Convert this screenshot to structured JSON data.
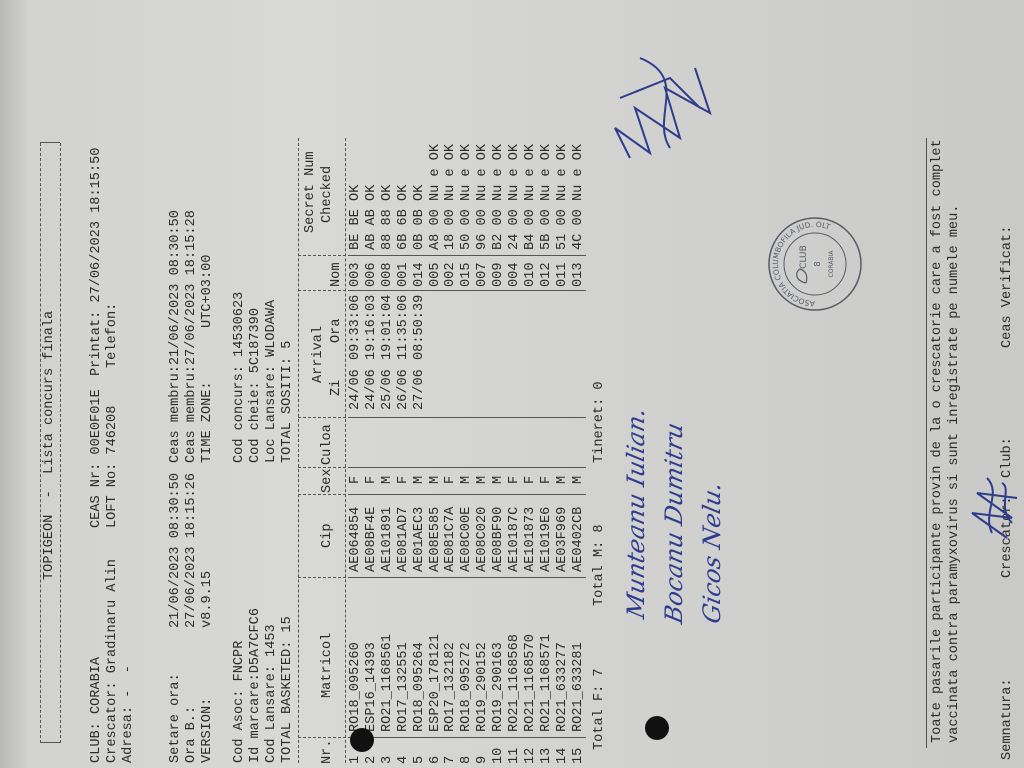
{
  "title": "TOPIGEON  -  Lista concurs finala",
  "header": {
    "club": "CLUB: CORABIA",
    "crescator": "Crescator: Gradinaru Alin",
    "adresa": "Adresa: -  -",
    "ceas_nr": "CEAS Nr: 00E0F01E",
    "loft_no": "LOFT No: 746208",
    "printat": "Printat: 27/06/2023 18:15:50",
    "telefon": "Telefon:",
    "setare_ora_label": "Setare ora:",
    "setare_ora": "21/06/2023 08:30:50",
    "ora_b_label": "Ora B.:",
    "ora_b": "27/06/2023 18:15:26",
    "version_label": "VERSION:",
    "version": "v8.9.15",
    "ceas_membru_1": "Ceas membru:21/06/2023 08:30:50",
    "ceas_membru_2": "Ceas membru:27/06/2023 18:15:28",
    "time_zone_label": "TIME ZONE:",
    "time_zone": "UTC+03:00",
    "cod_asoc": "Cod Asoc: FNCPR",
    "id_marcare": "Id marcare:D5A7CFC6",
    "cod_lansare": "Cod Lansare: 1453",
    "total_basketed": "TOTAL BASKETED: 15",
    "cod_concurs": "Cod concurs: 14530623",
    "cod_cheie": "Cod cheie: 5C187390",
    "loc_lansare": "Loc Lansare: WLODAWA",
    "total_sositi": "TOTAL SOSITI: 5"
  },
  "table": {
    "headers": {
      "nr": "Nr.",
      "matricol": "Matricol",
      "cip": "Cip",
      "sex": "Sex",
      "culoa": "Culoa",
      "arrival": "Arrival",
      "zi": "Zi",
      "ora": "Ora",
      "nom": "Nom",
      "secret": "Secret Num",
      "checked": "Checked"
    },
    "rows": [
      {
        "nr": "1",
        "matricol": "RO18_095260",
        "cip": "AE064854",
        "sex": "F",
        "zi": "24/06",
        "ora": "09:33:06",
        "nom": "003",
        "secret": "BE BE OK"
      },
      {
        "nr": "2",
        "matricol": "ESP16_14393",
        "cip": "AE08BF4E",
        "sex": "F",
        "zi": "24/06",
        "ora": "19:16:03",
        "nom": "006",
        "secret": "AB AB OK"
      },
      {
        "nr": "3",
        "matricol": "RO21_1168561",
        "cip": "AE101891",
        "sex": "M",
        "zi": "25/06",
        "ora": "19:01:04",
        "nom": "008",
        "secret": "88 88 OK"
      },
      {
        "nr": "4",
        "matricol": "RO17_132551",
        "cip": "AE081AD7",
        "sex": "F",
        "zi": "26/06",
        "ora": "11:35:06",
        "nom": "001",
        "secret": "6B 6B OK"
      },
      {
        "nr": "5",
        "matricol": "RO18_095264",
        "cip": "AE01AEC3",
        "sex": "M",
        "zi": "27/06",
        "ora": "08:50:39",
        "nom": "014",
        "secret": "0B 0B OK"
      },
      {
        "nr": "6",
        "matricol": "ESP20_178121",
        "cip": "AE08E585",
        "sex": "M",
        "zi": "",
        "ora": "",
        "nom": "005",
        "secret": "A8 00 Nu e OK"
      },
      {
        "nr": "7",
        "matricol": "RO17_132182",
        "cip": "AE081C7A",
        "sex": "F",
        "zi": "",
        "ora": "",
        "nom": "002",
        "secret": "18 00 Nu e OK"
      },
      {
        "nr": "8",
        "matricol": "RO18_095272",
        "cip": "AE08C00E",
        "sex": "M",
        "zi": "",
        "ora": "",
        "nom": "015",
        "secret": "50 00 Nu e OK"
      },
      {
        "nr": "9",
        "matricol": "RO19_290152",
        "cip": "AE08C020",
        "sex": "M",
        "zi": "",
        "ora": "",
        "nom": "007",
        "secret": "96 00 Nu e OK"
      },
      {
        "nr": "10",
        "matricol": "RO19_290163",
        "cip": "AE08BF90",
        "sex": "M",
        "zi": "",
        "ora": "",
        "nom": "009",
        "secret": "B2 00 Nu e OK"
      },
      {
        "nr": "11",
        "matricol": "RO21_1168568",
        "cip": "AE10187C",
        "sex": "F",
        "zi": "",
        "ora": "",
        "nom": "004",
        "secret": "24 00 Nu e OK"
      },
      {
        "nr": "12",
        "matricol": "RO21_1168570",
        "cip": "AE101873",
        "sex": "F",
        "zi": "",
        "ora": "",
        "nom": "010",
        "secret": "B4 00 Nu e OK"
      },
      {
        "nr": "13",
        "matricol": "RO21_1168571",
        "cip": "AE1019E6",
        "sex": "F",
        "zi": "",
        "ora": "",
        "nom": "012",
        "secret": "5B 00 Nu e OK"
      },
      {
        "nr": "14",
        "matricol": "RO21_633277",
        "cip": "AE03F969",
        "sex": "M",
        "zi": "",
        "ora": "",
        "nom": "011",
        "secret": "51 00 Nu e OK"
      },
      {
        "nr": "15",
        "matricol": "RO21_633281",
        "cip": "AE0402CB",
        "sex": "M",
        "zi": "",
        "ora": "",
        "nom": "013",
        "secret": "4C 00 Nu e OK"
      }
    ]
  },
  "totals": {
    "f": "Total F: 7",
    "m": "Total M: 8",
    "tineret": "Tineret: 0"
  },
  "handwritten": [
    "Munteanu Iulian.",
    "Bocanu Dumitru",
    "Gicos Nelu."
  ],
  "stamp": {
    "ring": "ASOCIATIA COLUMBOFILA JUD. OLT",
    "club": "CLUB",
    "number": "8",
    "city": "CORABIA"
  },
  "footer": {
    "line1": "Toate pasarile participante provin de la o crescatorie care a fost complet",
    "line2": "vaccinata contra paramyxovirus si sunt inregistrate pe numele meu.",
    "semnatura": "Semnatura:",
    "crescator": "Crescator:",
    "club": "Club:",
    "ceas_verificat": "Ceas Verificat:"
  },
  "colors": {
    "ink": "#2b2b2b",
    "pen": "#2f3c8e",
    "stamp": "#555a66",
    "paper": "#d6d6d4"
  }
}
